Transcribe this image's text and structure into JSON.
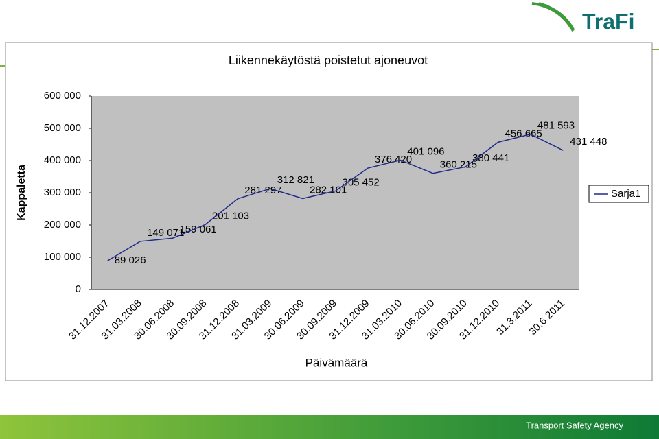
{
  "logo": "TraFi",
  "footer": "Transport Safety Agency",
  "chart_data": {
    "type": "line",
    "title": "Liikennekäytöstä poistetut ajoneuvot",
    "x_label": "Päivämäärä",
    "y_label": "Kappaletta",
    "categories": [
      "31.12.2007",
      "31.03.2008",
      "30.06.2008",
      "30.09.2008",
      "31.12.2008",
      "31.03.2009",
      "30.06.2009",
      "30.09.2009",
      "31.12.2009",
      "31.03.2010",
      "30.06.2010",
      "30.09.2010",
      "31.12.2010",
      "31.3.2011",
      "30.6.2011"
    ],
    "series": [
      {
        "name": "Sarja1",
        "color": "#1f2a8a",
        "values": [
          89026,
          149071,
          159061,
          201103,
          281297,
          312821,
          282101,
          305452,
          376420,
          401096,
          360215,
          380441,
          456665,
          481593,
          431448
        ],
        "value_labels": [
          "89 026",
          "149 071",
          "159 061",
          "201 103",
          "281 297",
          "312 821",
          "282 101",
          "305 452",
          "376 420",
          "401 096",
          "360 215",
          "380 441",
          "456 665",
          "481 593",
          "431 448"
        ]
      }
    ],
    "ylim": [
      0,
      600000
    ],
    "yticks": [
      0,
      {
        "value": 100000,
        "label": "100 000"
      },
      {
        "value": 200000,
        "label": "200 000"
      },
      {
        "value": 300000,
        "label": "300 000"
      },
      {
        "value": 400000,
        "label": "400 000"
      },
      {
        "value": 500000,
        "label": "500 000"
      },
      {
        "value": 600000,
        "label": "600 000"
      }
    ],
    "legend": "right",
    "plot_background": "#c0c0c0"
  }
}
